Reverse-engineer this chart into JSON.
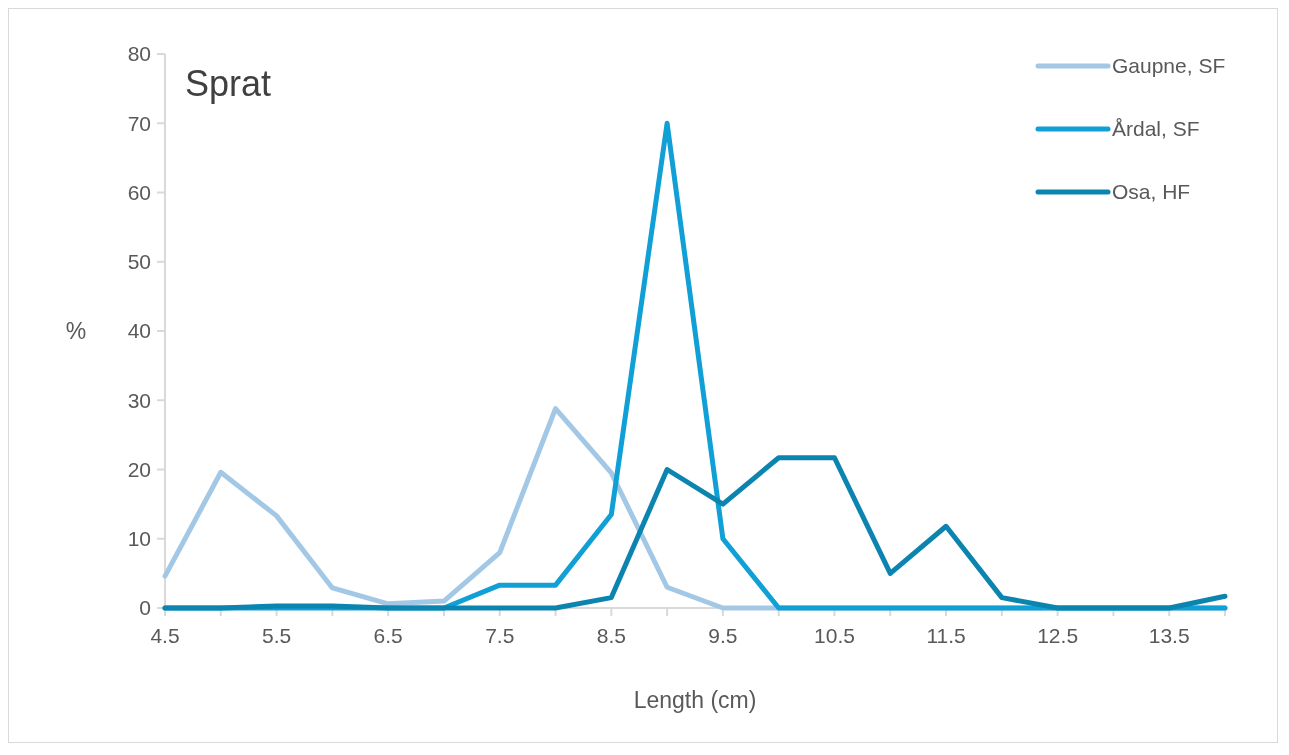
{
  "chart_data": {
    "type": "line",
    "title": "Sprat",
    "xlabel": "Length (cm)",
    "ylabel": "%",
    "x": [
      4.5,
      5,
      5.5,
      6,
      6.5,
      7,
      7.5,
      8,
      8.5,
      9,
      9.5,
      10,
      10.5,
      11,
      11.5,
      12,
      12.5,
      13,
      13.5,
      14
    ],
    "series": [
      {
        "name": "Gaupne, SF",
        "color": "#a3c8e6",
        "values": [
          4.6,
          19.6,
          13.3,
          2.9,
          0.6,
          1,
          8,
          28.8,
          19.5,
          3,
          0,
          0,
          0,
          0,
          0,
          0,
          0,
          0,
          0,
          0
        ]
      },
      {
        "name": "Årdal, SF",
        "color": "#11a0d6",
        "values": [
          0,
          0,
          0,
          0,
          0,
          0,
          3.3,
          3.3,
          13.5,
          70,
          10,
          0,
          0,
          0,
          0,
          0,
          0,
          0,
          0,
          0
        ]
      },
      {
        "name": "Osa, HF",
        "color": "#0b84b0",
        "values": [
          0,
          0,
          0.3,
          0.3,
          0,
          0,
          0,
          0,
          1.5,
          20,
          15,
          21.7,
          21.7,
          5,
          11.8,
          1.5,
          0,
          0,
          0,
          1.7
        ]
      }
    ],
    "xlim": [
      4.5,
      14
    ],
    "xticks": [
      4.5,
      {
        "value": 5,
        "label": null
      },
      5.5,
      {
        "value": 6,
        "label": null
      },
      6.5,
      {
        "value": 7,
        "label": null
      },
      7.5,
      {
        "value": 8,
        "label": null
      },
      8.5,
      {
        "value": 9,
        "label": null
      },
      9.5,
      {
        "value": 10,
        "label": null
      },
      10.5,
      {
        "value": 11,
        "label": null
      },
      11.5,
      {
        "value": 12,
        "label": null
      },
      12.5,
      {
        "value": 13,
        "label": null
      },
      13.5,
      {
        "value": 14,
        "label": null
      }
    ],
    "ylim": [
      0,
      80
    ],
    "yticks": [
      0,
      10,
      20,
      30,
      40,
      50,
      60,
      70,
      80
    ],
    "grid": false,
    "legend": "top right",
    "marker": "none",
    "line_style": "solid"
  }
}
